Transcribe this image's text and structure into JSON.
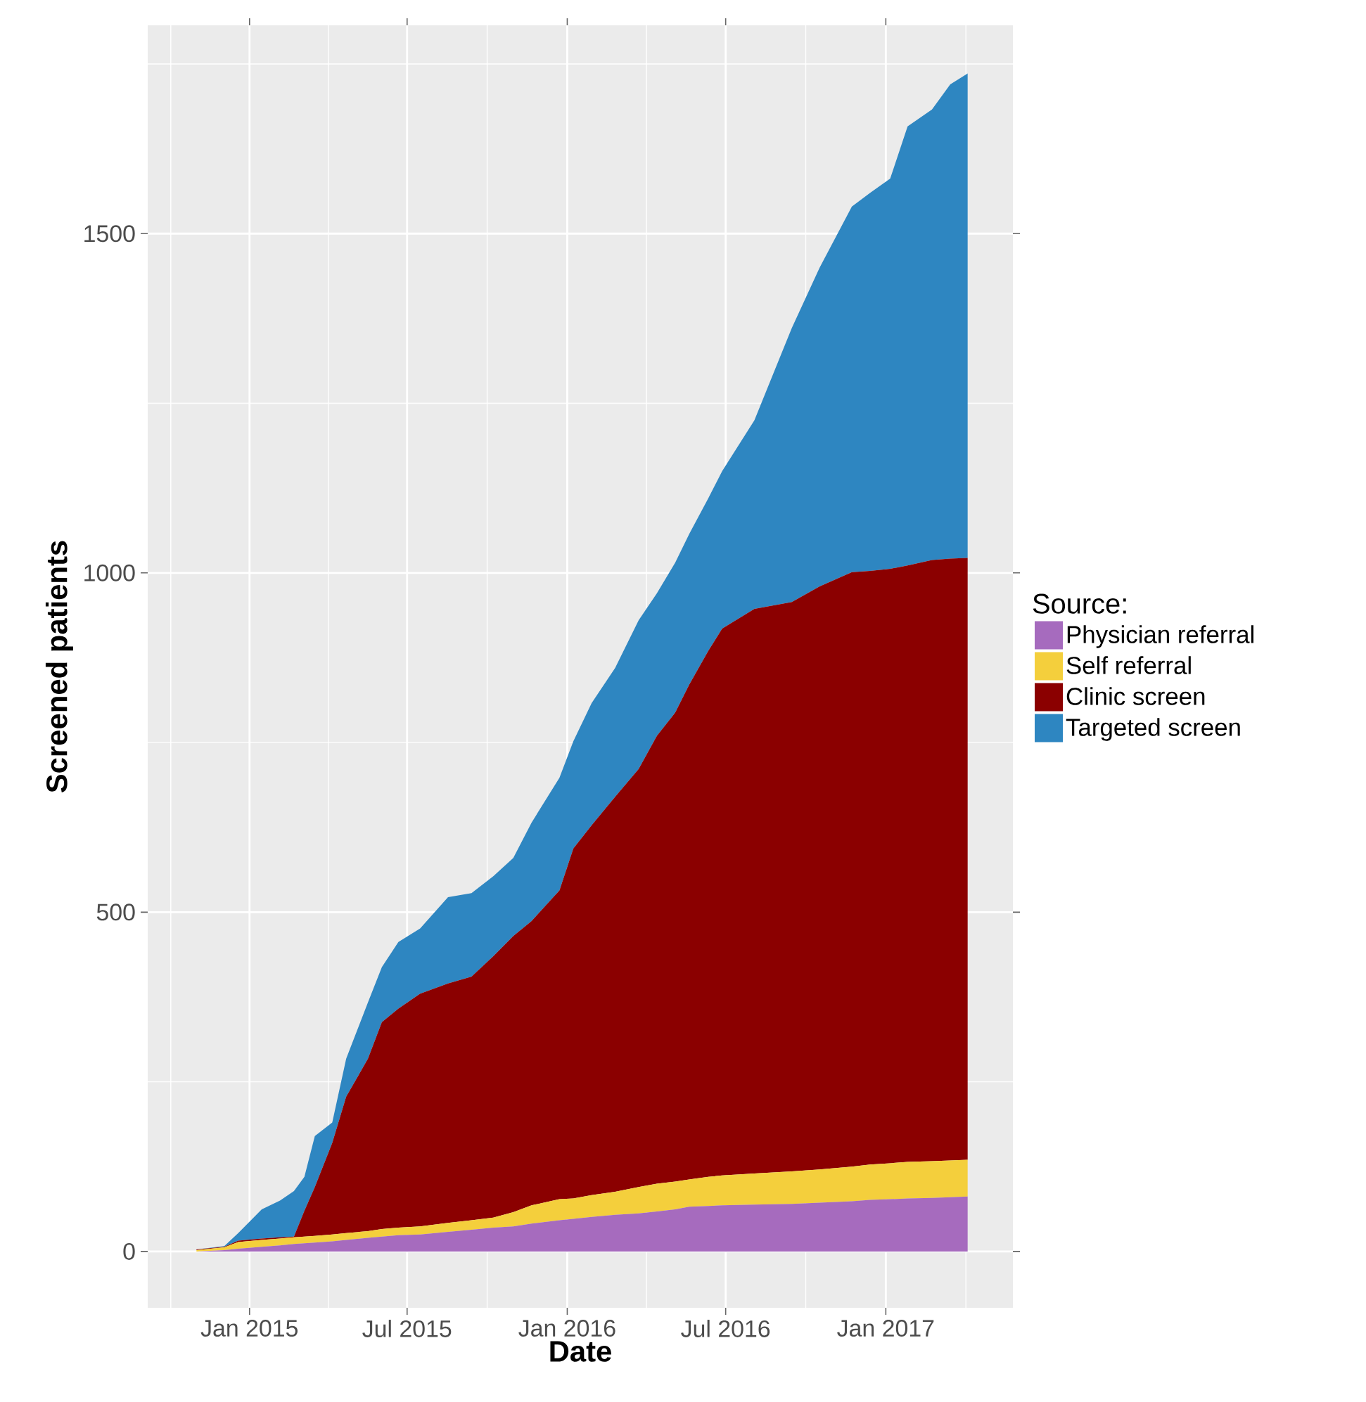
{
  "chart_data": {
    "type": "area",
    "stacked": true,
    "xlabel": "Date",
    "ylabel": "Screened patients",
    "legend_title": "Source:",
    "legend": "right",
    "grid": true,
    "x": [
      "2014-11-01",
      "2014-12-03",
      "2014-12-19",
      "2015-01-15",
      "2015-02-05",
      "2015-02-21",
      "2015-03-05",
      "2015-03-17",
      "2015-04-06",
      "2015-04-22",
      "2015-05-17",
      "2015-06-02",
      "2015-06-21",
      "2015-07-16",
      "2015-08-17",
      "2015-09-13",
      "2015-10-08",
      "2015-10-31",
      "2015-11-21",
      "2015-12-23",
      "2016-01-08",
      "2016-01-29",
      "2016-02-25",
      "2016-03-23",
      "2016-04-13",
      "2016-05-04",
      "2016-05-20",
      "2016-06-11",
      "2016-06-27",
      "2016-08-03",
      "2016-09-15",
      "2016-10-17",
      "2016-11-23",
      "2016-12-14",
      "2017-01-06",
      "2017-01-26",
      "2017-02-23",
      "2017-03-16",
      "2017-04-05"
    ],
    "series": [
      {
        "name": "Physician referral",
        "color": "#a66bbe",
        "values": [
          0,
          2,
          4,
          7,
          9,
          11,
          12,
          13,
          15,
          17,
          20,
          22,
          24,
          25,
          29,
          32,
          35,
          37,
          41,
          46,
          48,
          51,
          54,
          56,
          59,
          62,
          66,
          67,
          68,
          69,
          70,
          72,
          74,
          76,
          77,
          78,
          79,
          80,
          81
        ]
      },
      {
        "name": "Self referral",
        "color": "#f4cf3c",
        "values": [
          2,
          4,
          10,
          10,
          10,
          10,
          10,
          10,
          10,
          10,
          10,
          11,
          11,
          12,
          13,
          14,
          15,
          21,
          27,
          31,
          30,
          32,
          34,
          39,
          41,
          41,
          40,
          43,
          44,
          46,
          48,
          49,
          51,
          52,
          53,
          54,
          54,
          54,
          54
        ]
      },
      {
        "name": "Clinic screen",
        "color": "#8b0000",
        "values": [
          1,
          1,
          2,
          2,
          2,
          1,
          38,
          72,
          135,
          201,
          254,
          305,
          323,
          343,
          353,
          359,
          385,
          407,
          419,
          455,
          516,
          545,
          582,
          616,
          660,
          691,
          729,
          775,
          806,
          832,
          839,
          859,
          876,
          875,
          876,
          879,
          886,
          887,
          887
        ]
      },
      {
        "name": "Targeted screen",
        "color": "#2e86c1",
        "values": [
          0,
          1,
          11,
          43,
          54,
          67,
          50,
          75,
          30,
          56,
          83,
          81,
          98,
          96,
          127,
          123,
          118,
          115,
          145,
          166,
          158,
          180,
          190,
          219,
          210,
          221,
          222,
          225,
          232,
          278,
          404,
          470,
          539,
          557,
          575,
          647,
          664,
          699,
          714
        ]
      }
    ],
    "xlim": [
      "2014-09-06",
      "2017-05-27"
    ],
    "ylim": [
      -83,
      1807
    ],
    "xticks": [
      {
        "value": "2015-01-01",
        "label": "Jan 2015"
      },
      {
        "value": "2015-07-01",
        "label": "Jul 2015"
      },
      {
        "value": "2016-01-01",
        "label": "Jan 2016"
      },
      {
        "value": "2016-07-01",
        "label": "Jul 2016"
      },
      {
        "value": "2017-01-01",
        "label": "Jan 2017"
      }
    ],
    "yticks": [
      0,
      500,
      1000,
      1500
    ]
  }
}
